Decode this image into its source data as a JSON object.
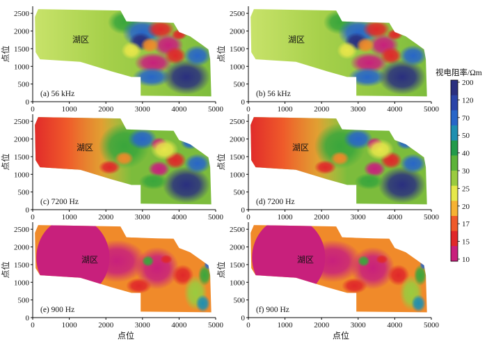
{
  "chart_data": {
    "type": "heatmap",
    "xlabel": "点位",
    "ylabel": "点位",
    "xlim": [
      0,
      5000
    ],
    "ylim": [
      0,
      2700
    ],
    "x_ticks": [
      "0",
      "1000",
      "2000",
      "3000",
      "4000",
      "5000"
    ],
    "y_ticks": [
      "0",
      "500",
      "1000",
      "1500",
      "2000",
      "2500"
    ],
    "annotation": "湖区",
    "colorbar": {
      "title": "视电阻率/Ωm",
      "ticks": [
        "200",
        "120",
        "70",
        "50",
        "40",
        "30",
        "25",
        "20",
        "17",
        "15",
        "10"
      ],
      "colors": [
        "#2a2f7f",
        "#2b44a8",
        "#2866c8",
        "#1f8fb0",
        "#239a4a",
        "#5db33a",
        "#9acb3f",
        "#e6e84a",
        "#f6b233",
        "#ef5a2a",
        "#e0282a",
        "#c8207c"
      ]
    },
    "panels": [
      {
        "label": "(a) 56 kHz",
        "regime": "56kHz"
      },
      {
        "label": "(b) 56 kHz",
        "regime": "56kHz"
      },
      {
        "label": "(c) 7200 Hz",
        "regime": "7200Hz"
      },
      {
        "label": "(d) 7200 Hz",
        "regime": "7200Hz"
      },
      {
        "label": "(e) 900 Hz",
        "regime": "900Hz"
      },
      {
        "label": "(f) 900 Hz",
        "regime": "900Hz"
      }
    ]
  }
}
